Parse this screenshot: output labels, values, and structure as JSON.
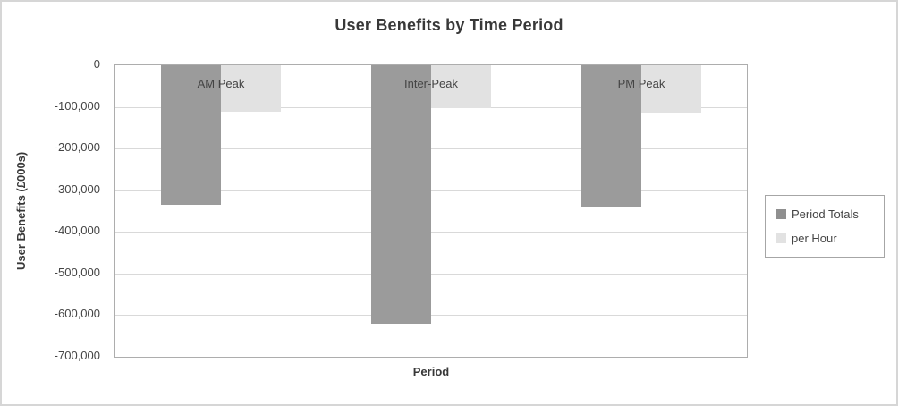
{
  "chart": {
    "title": "User Benefits by Time Period",
    "x_axis_title": "Period",
    "y_axis_title": "User Benefits (£000s)",
    "y_ticks": [
      "0",
      "-100,000",
      "-200,000",
      "-300,000",
      "-400,000",
      "-500,000",
      "-600,000",
      "-700,000"
    ]
  },
  "legend": {
    "items": [
      {
        "label": "Period Totals",
        "color": "#8f8f8f"
      },
      {
        "label": "per Hour",
        "color": "#e2e2e2"
      }
    ]
  },
  "chart_data": {
    "type": "bar",
    "title": "User Benefits by Time Period",
    "xlabel": "Period",
    "ylabel": "User Benefits (£000s)",
    "categories": [
      "AM Peak",
      "Inter-Peak",
      "PM Peak"
    ],
    "series": [
      {
        "name": "Period Totals",
        "color": "#9b9b9b",
        "values": [
          -335000,
          -620000,
          -341000
        ]
      },
      {
        "name": "per Hour",
        "color": "#e2e2e2",
        "values": [
          -111000,
          -103000,
          -114000
        ]
      }
    ],
    "ylim": [
      -700000,
      0
    ],
    "y_tick_step": 100000,
    "grid": true,
    "legend_position": "right",
    "category_labels_position": "inside-top"
  }
}
